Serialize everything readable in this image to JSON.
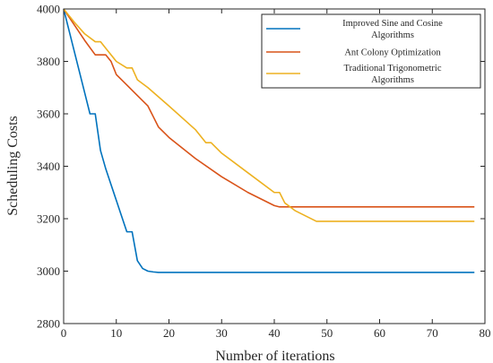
{
  "chart_data": {
    "type": "line",
    "title": "",
    "xlabel": "Number of iterations",
    "ylabel": "Scheduling Costs",
    "xlim": [
      0,
      80
    ],
    "ylim": [
      2800,
      4000
    ],
    "xticks": [
      "0",
      "10",
      "20",
      "30",
      "40",
      "50",
      "60",
      "70",
      "80"
    ],
    "yticks": [
      "2800",
      "3000",
      "3200",
      "3400",
      "3600",
      "3800",
      "4000"
    ],
    "grid": false,
    "legend_position": "top-right",
    "series": [
      {
        "name": "Improved Sine and Cosine Algorithms",
        "legend_lines": [
          "Improved Sine and Cosine",
          "Algorithms"
        ],
        "color": "#0072BD",
        "x": [
          0,
          1,
          2,
          3,
          4,
          5,
          6,
          7,
          8,
          9,
          10,
          11,
          12,
          13,
          14,
          15,
          16,
          17,
          18,
          19,
          20,
          30,
          40,
          50,
          60,
          70,
          78
        ],
        "y": [
          4000,
          3920,
          3840,
          3760,
          3680,
          3600,
          3600,
          3460,
          3390,
          3330,
          3270,
          3210,
          3150,
          3150,
          3040,
          3010,
          3000,
          2997,
          2995,
          2995,
          2995,
          2995,
          2995,
          2995,
          2995,
          2995,
          2995
        ]
      },
      {
        "name": "Ant Colony Optimization",
        "legend_lines": [
          "Ant Colony Optimization"
        ],
        "color": "#D95319",
        "x": [
          0,
          2,
          4,
          6,
          8,
          9,
          10,
          12,
          14,
          16,
          17,
          18,
          20,
          25,
          30,
          35,
          40,
          41,
          45,
          50,
          60,
          70,
          78
        ],
        "y": [
          4000,
          3940,
          3880,
          3825,
          3825,
          3800,
          3750,
          3710,
          3670,
          3630,
          3590,
          3550,
          3510,
          3430,
          3360,
          3300,
          3250,
          3245,
          3245,
          3245,
          3245,
          3245,
          3245
        ]
      },
      {
        "name": "Traditional Trigonometric Algorithms",
        "legend_lines": [
          "Traditional Trigonometric",
          "Algorithms"
        ],
        "color": "#EDB120",
        "x": [
          0,
          2,
          4,
          6,
          7,
          8,
          10,
          12,
          13,
          14,
          16,
          18,
          20,
          25,
          27,
          28,
          30,
          35,
          40,
          41,
          42,
          44,
          46,
          48,
          50,
          60,
          70,
          78
        ],
        "y": [
          4000,
          3950,
          3905,
          3875,
          3875,
          3850,
          3800,
          3775,
          3775,
          3730,
          3700,
          3665,
          3630,
          3540,
          3490,
          3490,
          3450,
          3375,
          3300,
          3300,
          3260,
          3230,
          3210,
          3190,
          3190,
          3190,
          3190,
          3190
        ]
      }
    ]
  }
}
